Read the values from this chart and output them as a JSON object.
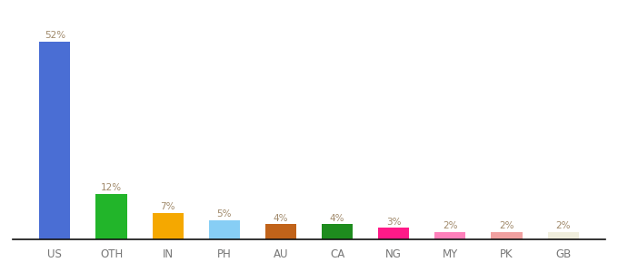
{
  "categories": [
    "US",
    "OTH",
    "IN",
    "PH",
    "AU",
    "CA",
    "NG",
    "MY",
    "PK",
    "GB"
  ],
  "values": [
    52,
    12,
    7,
    5,
    4,
    4,
    3,
    2,
    2,
    2
  ],
  "bar_colors": [
    "#4a6ed4",
    "#22b52a",
    "#f5a800",
    "#87cef5",
    "#c1631a",
    "#1e8c1e",
    "#ff1a88",
    "#ff80bb",
    "#f0a0a0",
    "#f0eedd"
  ],
  "label_color": "#a0896a",
  "ylim": [
    0,
    58
  ],
  "bar_width": 0.55,
  "figsize": [
    6.8,
    3.0
  ],
  "dpi": 100,
  "bg_color": "#ffffff",
  "spine_color": "#111111",
  "label_fontsize": 7.5,
  "tick_fontsize": 8.5,
  "tick_color": "#777777"
}
